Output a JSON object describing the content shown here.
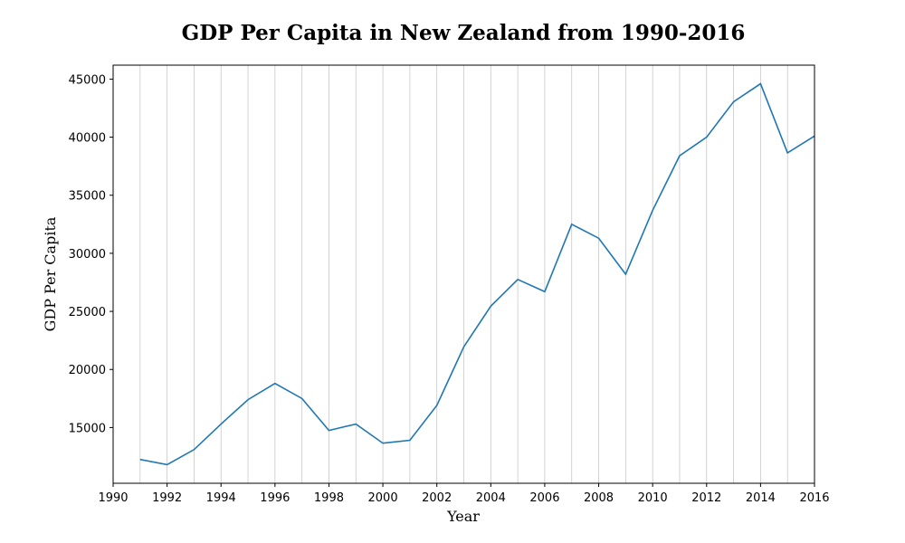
{
  "chart_data": {
    "type": "line",
    "title": "GDP Per Capita in New Zealand from 1990-2016",
    "xlabel": "Year",
    "ylabel": "GDP Per Capita",
    "xlim": [
      1990,
      2016
    ],
    "ylim": [
      10200,
      46200
    ],
    "x_ticks": [
      1990,
      1992,
      1994,
      1996,
      1998,
      2000,
      2002,
      2004,
      2006,
      2008,
      2010,
      2012,
      2014,
      2016
    ],
    "y_ticks": [
      15000,
      20000,
      25000,
      30000,
      35000,
      40000,
      45000
    ],
    "grid": "vertical lines every year",
    "legend": "none",
    "line_color": "#1f77b4",
    "series": [
      {
        "x": [
          1991,
          1992,
          1993,
          1994,
          1995,
          1996,
          1997,
          1998,
          1999,
          2000,
          2001,
          2002,
          2003,
          2004,
          2005,
          2006,
          2007,
          2008,
          2009,
          2010,
          2011,
          2012,
          2013,
          2014,
          2015,
          2016
        ],
        "values": [
          12250,
          11800,
          13100,
          15300,
          17400,
          18800,
          17500,
          14750,
          15300,
          13650,
          13900,
          16900,
          21950,
          25450,
          27750,
          26700,
          32500,
          31300,
          28200,
          33700,
          38400,
          40000,
          43050,
          44600,
          38650,
          40100
        ]
      }
    ]
  }
}
